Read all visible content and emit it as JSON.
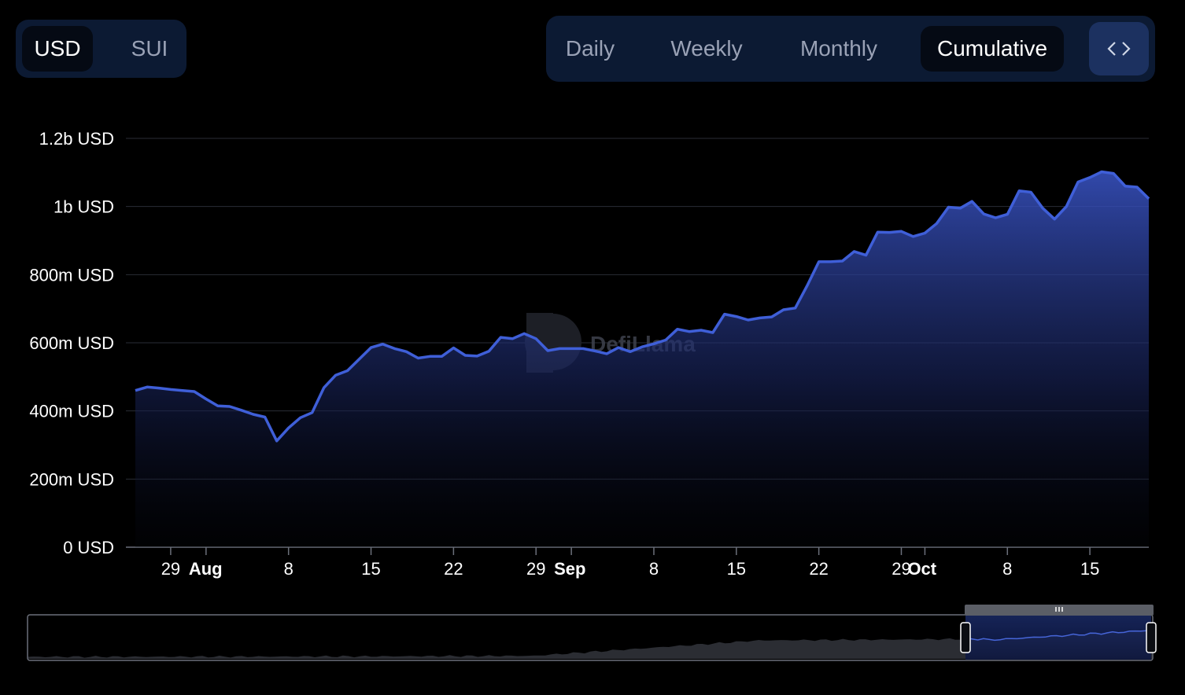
{
  "currency_toggle": {
    "options": [
      "USD",
      "SUI"
    ],
    "selected": "USD"
  },
  "period_toggle": {
    "options": [
      "Daily",
      "Weekly",
      "Monthly",
      "Cumulative"
    ],
    "selected": "Cumulative"
  },
  "embed_icon": "code-brackets-icon",
  "watermark": "DefiLlama",
  "colors": {
    "line": "#3f5fd8",
    "panel": "#0c1a33",
    "grid": "#2a2d36"
  },
  "chart_data": {
    "type": "area",
    "ylim": [
      0,
      1200000000
    ],
    "y_ticks": [
      {
        "value": 0,
        "label": "0 USD"
      },
      {
        "value": 200000000,
        "label": "200m USD"
      },
      {
        "value": 400000000,
        "label": "400m USD"
      },
      {
        "value": 600000000,
        "label": "600m USD"
      },
      {
        "value": 800000000,
        "label": "800m USD"
      },
      {
        "value": 1000000000,
        "label": "1b USD"
      },
      {
        "value": 1200000000,
        "label": "1.2b USD"
      }
    ],
    "x_start": "2023-07-26",
    "x_end": "2023-10-20",
    "x_ticks": [
      {
        "date": "2023-07-29",
        "label": "29",
        "bold": false
      },
      {
        "date": "2023-08-01",
        "label": "Aug",
        "bold": true
      },
      {
        "date": "2023-08-08",
        "label": "8",
        "bold": false
      },
      {
        "date": "2023-08-15",
        "label": "15",
        "bold": false
      },
      {
        "date": "2023-08-22",
        "label": "22",
        "bold": false
      },
      {
        "date": "2023-08-29",
        "label": "29",
        "bold": false
      },
      {
        "date": "2023-09-01",
        "label": "Sep",
        "bold": true
      },
      {
        "date": "2023-09-08",
        "label": "8",
        "bold": false
      },
      {
        "date": "2023-09-15",
        "label": "15",
        "bold": false
      },
      {
        "date": "2023-09-22",
        "label": "22",
        "bold": false
      },
      {
        "date": "2023-09-29",
        "label": "29",
        "bold": false
      },
      {
        "date": "2023-10-01",
        "label": "Oct",
        "bold": true
      },
      {
        "date": "2023-10-08",
        "label": "8",
        "bold": false
      },
      {
        "date": "2023-10-15",
        "label": "15",
        "bold": false
      }
    ],
    "series": [
      {
        "x": [
          "2023-07-26",
          "2023-07-27",
          "2023-07-28",
          "2023-07-29",
          "2023-07-30",
          "2023-07-31",
          "2023-08-01",
          "2023-08-02",
          "2023-08-03",
          "2023-08-04",
          "2023-08-05",
          "2023-08-06",
          "2023-08-07",
          "2023-08-08",
          "2023-08-09",
          "2023-08-10",
          "2023-08-11",
          "2023-08-12",
          "2023-08-13",
          "2023-08-14",
          "2023-08-15",
          "2023-08-16",
          "2023-08-17",
          "2023-08-18",
          "2023-08-19",
          "2023-08-20",
          "2023-08-21",
          "2023-08-22",
          "2023-08-23",
          "2023-08-24",
          "2023-08-25",
          "2023-08-26",
          "2023-08-27",
          "2023-08-28",
          "2023-08-29",
          "2023-08-30",
          "2023-08-31",
          "2023-09-01",
          "2023-09-02",
          "2023-09-03",
          "2023-09-04",
          "2023-09-05",
          "2023-09-06",
          "2023-09-07",
          "2023-09-08",
          "2023-09-09",
          "2023-09-10",
          "2023-09-11",
          "2023-09-12",
          "2023-09-13",
          "2023-09-14",
          "2023-09-15",
          "2023-09-16",
          "2023-09-17",
          "2023-09-18",
          "2023-09-19",
          "2023-09-20",
          "2023-09-21",
          "2023-09-22",
          "2023-09-23",
          "2023-09-24",
          "2023-09-25",
          "2023-09-26",
          "2023-09-27",
          "2023-09-28",
          "2023-09-29",
          "2023-09-30",
          "2023-10-01",
          "2023-10-02",
          "2023-10-03",
          "2023-10-04",
          "2023-10-05",
          "2023-10-06",
          "2023-10-07",
          "2023-10-08",
          "2023-10-09",
          "2023-10-10",
          "2023-10-11",
          "2023-10-12",
          "2023-10-13",
          "2023-10-14",
          "2023-10-15",
          "2023-10-16",
          "2023-10-17",
          "2023-10-18",
          "2023-10-19",
          "2023-10-20"
        ],
        "y": [
          460000000,
          470000000,
          467000000,
          463000000,
          460000000,
          457000000,
          435000000,
          415000000,
          413000000,
          402000000,
          390000000,
          382000000,
          312000000,
          350000000,
          380000000,
          395000000,
          468000000,
          505000000,
          518000000,
          552000000,
          586000000,
          596000000,
          583000000,
          574000000,
          555000000,
          560000000,
          560000000,
          585000000,
          563000000,
          561000000,
          575000000,
          616000000,
          612000000,
          627000000,
          612000000,
          577000000,
          583000000,
          583000000,
          583000000,
          576000000,
          568000000,
          586000000,
          574000000,
          588000000,
          597000000,
          608000000,
          640000000,
          633000000,
          637000000,
          630000000,
          684000000,
          677000000,
          667000000,
          673000000,
          676000000,
          697000000,
          702000000,
          767000000,
          838000000,
          838000000,
          840000000,
          868000000,
          857000000,
          925000000,
          924000000,
          927000000,
          912000000,
          922000000,
          950000000,
          998000000,
          995000000,
          1015000000,
          978000000,
          967000000,
          977000000,
          1046000000,
          1042000000,
          995000000,
          963000000,
          1000000000,
          1072000000,
          1085000000,
          1102000000,
          1097000000,
          1060000000,
          1057000000,
          1023000000
        ]
      }
    ]
  },
  "navigator": {
    "range_start": "2023-07-26",
    "range_end": "2023-10-20",
    "handle_grip_icon": "grip-lines-icon"
  }
}
